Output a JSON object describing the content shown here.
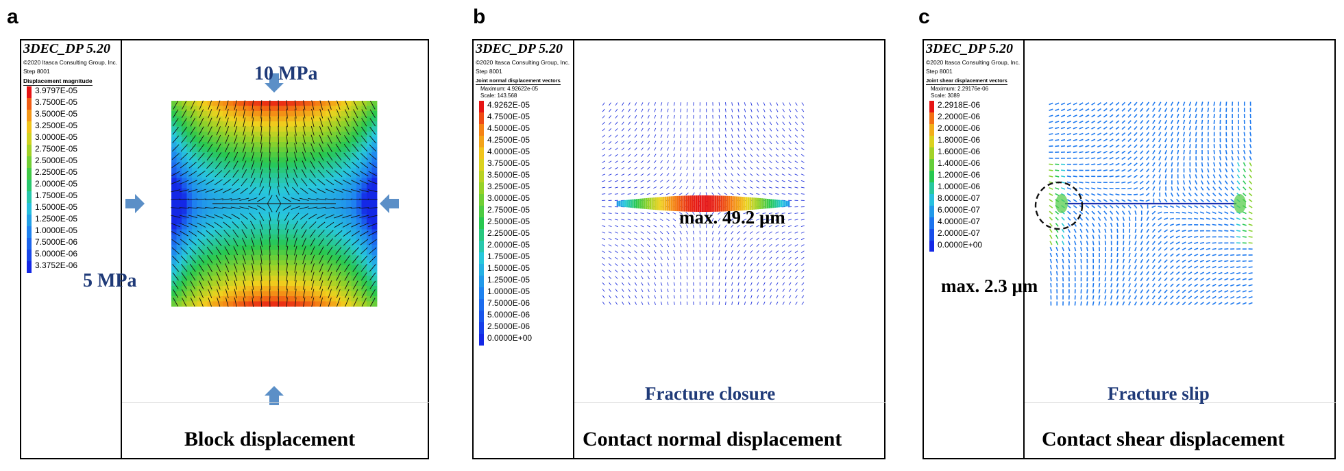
{
  "panels": [
    {
      "letter": "a",
      "app_title": "3DEC_DP 5.20",
      "copyright": "©2020 Itasca Consulting Group, Inc.",
      "step": "Step 8001",
      "legend_title": "Displacement magnitude",
      "legend_labels": [
        "3.9797E-05",
        "3.7500E-05",
        "3.5000E-05",
        "3.2500E-05",
        "3.0000E-05",
        "2.7500E-05",
        "2.5000E-05",
        "2.2500E-05",
        "2.0000E-05",
        "1.7500E-05",
        "1.5000E-05",
        "1.2500E-05",
        "1.0000E-05",
        "7.5000E-06",
        "5.0000E-06",
        "3.3752E-06"
      ],
      "caption": "Block displacement",
      "load_top": "10 MPa",
      "load_side": "5 MPa"
    },
    {
      "letter": "b",
      "app_title": "3DEC_DP 5.20",
      "copyright": "©2020 Itasca Consulting Group, Inc.",
      "step": "Step 8001",
      "legend_title": "Joint normal displacement vectors",
      "legend_max": "Maximum: 4.92622e-05",
      "legend_scale": "Scale: 143.568",
      "legend_labels": [
        "4.9262E-05",
        "4.7500E-05",
        "4.5000E-05",
        "4.2500E-05",
        "4.0000E-05",
        "3.7500E-05",
        "3.5000E-05",
        "3.2500E-05",
        "3.0000E-05",
        "2.7500E-05",
        "2.5000E-05",
        "2.2500E-05",
        "2.0000E-05",
        "1.7500E-05",
        "1.5000E-05",
        "1.2500E-05",
        "1.0000E-05",
        "7.5000E-06",
        "5.0000E-06",
        "2.5000E-06",
        "0.0000E+00"
      ],
      "annotation": "max. 49.2 μm",
      "subtitle": "Fracture closure",
      "caption": "Contact normal displacement"
    },
    {
      "letter": "c",
      "app_title": "3DEC_DP 5.20",
      "copyright": "©2020 Itasca Consulting Group, Inc.",
      "step": "Step 8001",
      "legend_title": "Joint shear displacement vectors",
      "legend_max": "Maximum: 2.29176e-06",
      "legend_scale": "Scale: 3089",
      "legend_labels": [
        "2.2918E-06",
        "2.2000E-06",
        "2.0000E-06",
        "1.8000E-06",
        "1.6000E-06",
        "1.4000E-06",
        "1.2000E-06",
        "1.0000E-06",
        "8.0000E-07",
        "6.0000E-07",
        "4.0000E-07",
        "2.0000E-07",
        "0.0000E+00"
      ],
      "annotation": "max. 2.3 μm",
      "subtitle": "Fracture slip",
      "caption": "Contact shear displacement"
    }
  ],
  "colors": {
    "load_arrow": "#5b8fc7",
    "label_blue": "#1f3a78",
    "vector_blue": "#2233dd"
  }
}
